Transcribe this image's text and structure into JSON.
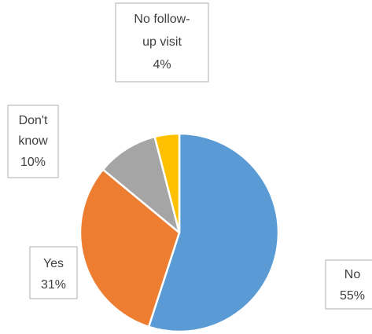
{
  "chart_data": {
    "type": "pie",
    "title": "",
    "slices": [
      {
        "label": "No",
        "value": 55,
        "display": "55%",
        "color": "#5b9bd5"
      },
      {
        "label": "Yes",
        "value": 31,
        "display": "31%",
        "color": "#ed7d31"
      },
      {
        "label": "Don't know",
        "value": 10,
        "display": "10%",
        "color": "#a5a5a5"
      },
      {
        "label": "No follow-up visit",
        "value": 4,
        "display": "4%",
        "color": "#ffc000"
      }
    ],
    "legend": "none",
    "data_labels": "callouts"
  }
}
